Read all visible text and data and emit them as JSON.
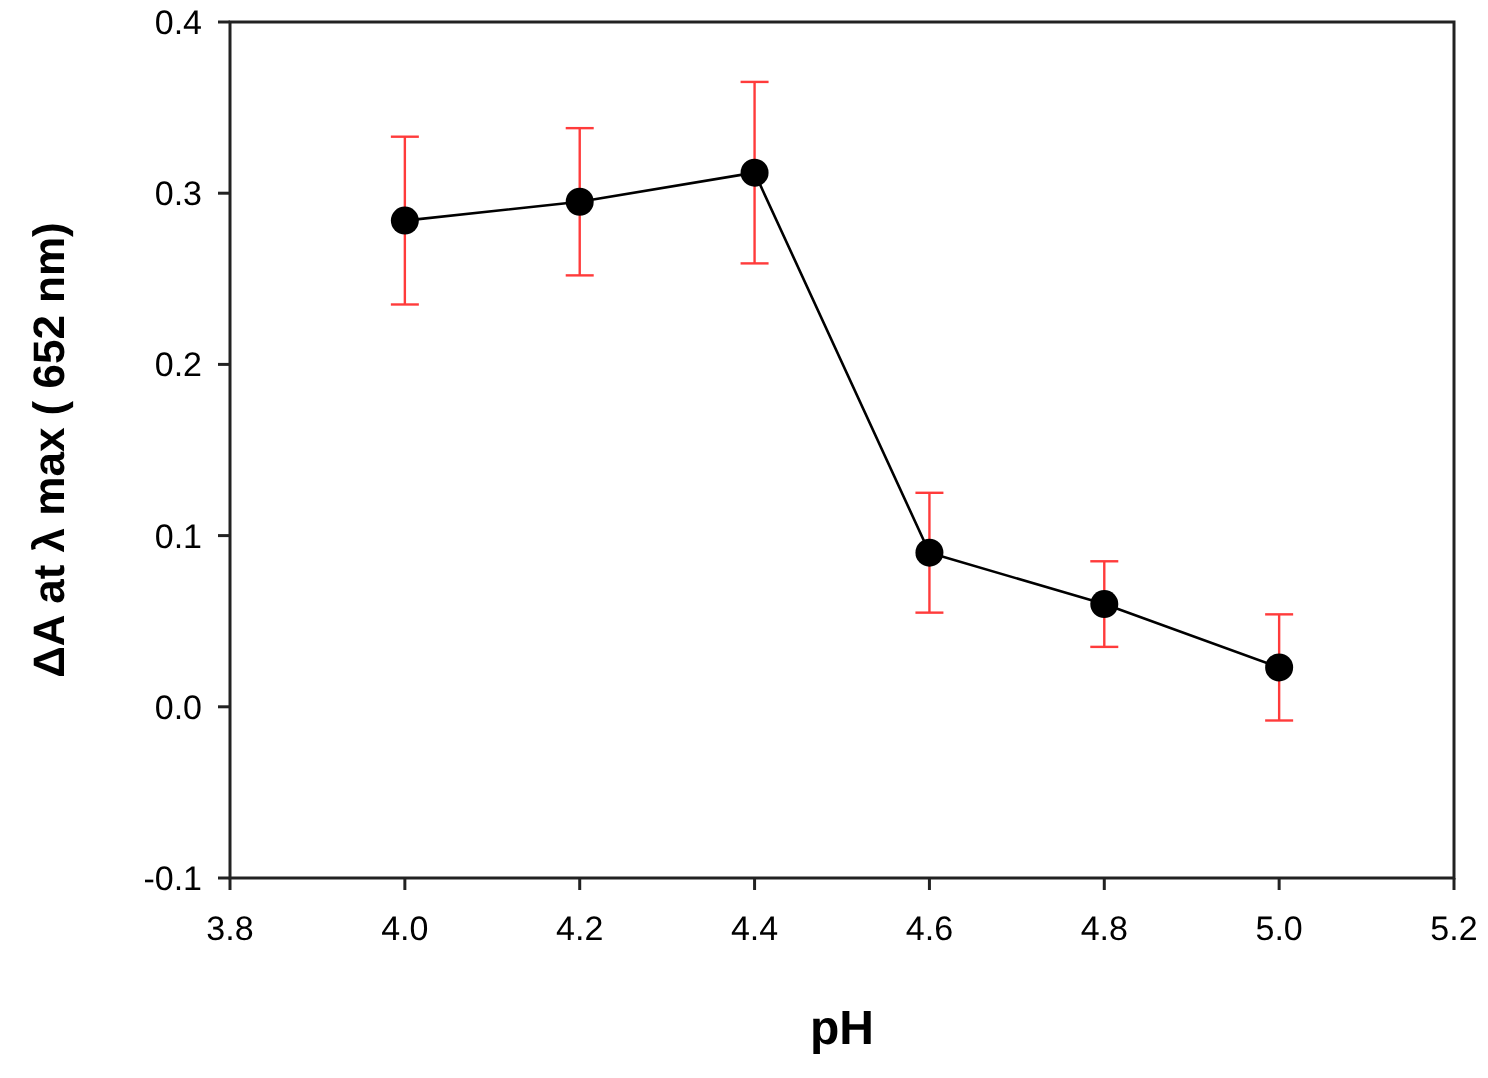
{
  "chart_data": {
    "type": "line",
    "xlabel": "pH",
    "ylabel": "ΔA at λ max ( 652 nm)",
    "x": [
      4.0,
      4.2,
      4.4,
      4.6,
      4.8,
      5.0
    ],
    "series": [
      {
        "color": "#000000",
        "values": [
          0.284,
          0.295,
          0.312,
          0.09,
          0.06,
          0.023
        ],
        "errors": [
          0.049,
          0.043,
          0.053,
          0.035,
          0.025,
          0.031
        ]
      }
    ],
    "xlim": [
      3.8,
      5.2
    ],
    "xticks": [
      {
        "value": 3.8,
        "label": "3.8"
      },
      {
        "value": 4.0,
        "label": "4.0"
      },
      {
        "value": 4.2,
        "label": "4.2"
      },
      {
        "value": 4.4,
        "label": "4.4"
      },
      {
        "value": 4.6,
        "label": "4.6"
      },
      {
        "value": 4.8,
        "label": "4.8"
      },
      {
        "value": 5.0,
        "label": "5.0"
      },
      {
        "value": 5.2,
        "label": "5.2"
      }
    ],
    "ylim": [
      -0.1,
      0.4
    ],
    "yticks": [
      -0.1,
      {
        "value": 0.0,
        "label": "0.0"
      },
      0.1,
      0.2,
      0.3,
      0.4
    ],
    "marker": "circle",
    "line_style": "solid"
  }
}
